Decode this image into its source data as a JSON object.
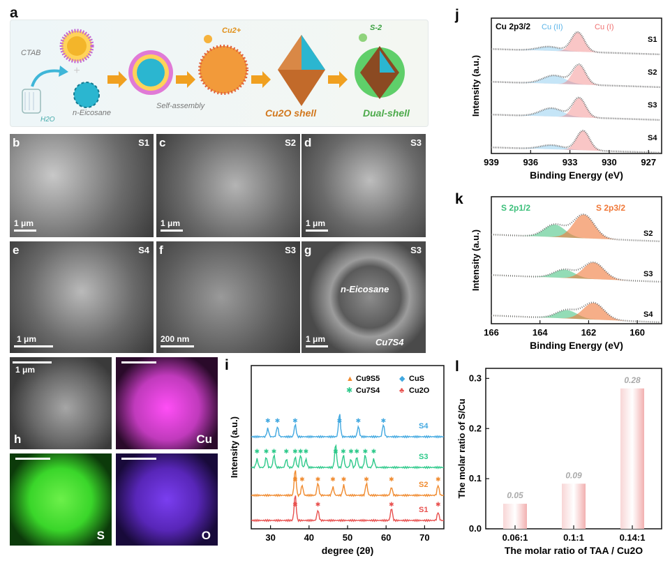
{
  "panel_a": {
    "letter": "a",
    "labels": {
      "ctab": "CTAB",
      "water": "H2O",
      "eicosane": "n-Eicosane",
      "self_assembly": "Self-assembly",
      "cu_ion": "Cu2+",
      "s_ion": "S-2",
      "cu2o_shell": "Cu2O shell",
      "dual_shell": "Dual-shell"
    }
  },
  "sem_panels": [
    {
      "letter": "b",
      "sample": "S1",
      "scale": "1 μm"
    },
    {
      "letter": "c",
      "sample": "S2",
      "scale": "1 μm"
    },
    {
      "letter": "d",
      "sample": "S3",
      "scale": "1 μm"
    },
    {
      "letter": "e",
      "sample": "S4",
      "scale": "1 μm"
    },
    {
      "letter": "f",
      "sample": "S3",
      "scale": "200 nm"
    },
    {
      "letter": "g",
      "sample": "S3",
      "scale": "1 μm",
      "annot1": "n-Eicosane",
      "annot2": "Cu7S4"
    }
  ],
  "panel_h": {
    "letter": "h",
    "scale": "1 μm",
    "maps": {
      "cu": "Cu",
      "s": "S",
      "o": "O"
    }
  },
  "colors": {
    "s4": "#41a8e0",
    "s3": "#2dc98a",
    "s2": "#f08a2e",
    "s1": "#e8504e",
    "cu1": "#f07070",
    "cu2": "#5ab4e8",
    "s2p32": "#f07838",
    "s2p12": "#3bbf7a"
  },
  "chart_data": [
    {
      "panel": "i",
      "type": "line",
      "xlabel": "degree (2θ)",
      "ylabel": "Intensity (a.u.)",
      "xlim": [
        25,
        75
      ],
      "xticks": [
        30,
        40,
        50,
        60,
        70
      ],
      "legend": [
        {
          "name": "Cu9S5",
          "marker": "▲"
        },
        {
          "name": "CuS",
          "marker": "◆"
        },
        {
          "name": "Cu7S4",
          "marker": "✱"
        },
        {
          "name": "Cu2O",
          "marker": "♣"
        }
      ],
      "series": [
        {
          "name": "S4",
          "peaks": [
            29.3,
            31.8,
            36.4,
            47.9,
            52.8,
            59.3
          ]
        },
        {
          "name": "S3",
          "peaks": [
            26.5,
            28.9,
            30.9,
            34.1,
            36.4,
            37.8,
            39.2,
            46.9,
            48.9,
            50.9,
            52.4,
            54.6,
            56.8
          ]
        },
        {
          "name": "S2",
          "peaks": [
            36.4,
            38.2,
            42.3,
            46.2,
            49.0,
            54.9,
            61.4,
            73.5
          ]
        },
        {
          "name": "S1",
          "peaks": [
            36.4,
            42.3,
            61.4,
            73.5
          ]
        }
      ]
    },
    {
      "panel": "j",
      "type": "line",
      "title": "Cu 2p3/2",
      "xlabel": "Binding Energy (eV)",
      "ylabel": "Intensity (a.u.)",
      "xlim": [
        939,
        926
      ],
      "xticks": [
        939,
        936,
        933,
        930,
        927
      ],
      "components": [
        "Cu (II)",
        "Cu (I)"
      ],
      "series": [
        {
          "name": "S1",
          "cu1_center": 932.4,
          "cu2_center": 934.6
        },
        {
          "name": "S2",
          "cu1_center": 932.3,
          "cu2_center": 934.2
        },
        {
          "name": "S3",
          "cu1_center": 932.3,
          "cu2_center": 934.4
        },
        {
          "name": "S4",
          "cu1_center": 932.0,
          "cu2_center": 934.4
        }
      ]
    },
    {
      "panel": "k",
      "type": "line",
      "xlabel": "Binding Energy (eV)",
      "ylabel": "Intensity (a.u.)",
      "xlim": [
        166,
        159
      ],
      "xticks": [
        166,
        164,
        162,
        160
      ],
      "components": [
        "S 2p1/2",
        "S 2p3/2"
      ],
      "series": [
        {
          "name": "S2",
          "p32_center": 162.2,
          "p12_center": 163.4
        },
        {
          "name": "S3",
          "p32_center": 161.8,
          "p12_center": 163.0
        },
        {
          "name": "S4",
          "p32_center": 161.8,
          "p12_center": 162.9
        }
      ]
    },
    {
      "panel": "l",
      "type": "bar",
      "xlabel": "The molar ratio of TAA / Cu2O",
      "ylabel": "The molar ratio of S/Cu",
      "ylim": [
        0,
        0.32
      ],
      "yticks": [
        "0.0",
        "0.1",
        "0.2",
        "0.3"
      ],
      "categories": [
        "0.06:1",
        "0.1:1",
        "0.14:1"
      ],
      "values": [
        0.05,
        0.09,
        0.28
      ],
      "value_labels": [
        "0.05",
        "0.09",
        "0.28"
      ]
    }
  ]
}
